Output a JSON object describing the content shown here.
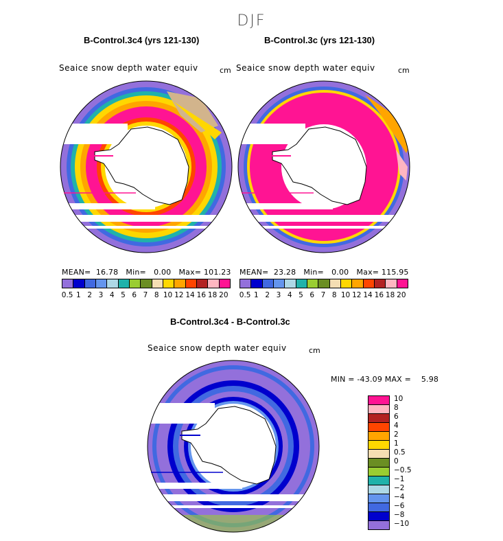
{
  "figure": {
    "season": "DJF"
  },
  "panels": [
    {
      "title": "B-Control.3c4 (yrs 121-130)",
      "variable": "Seaice snow depth water equiv",
      "units": "cm",
      "stats": {
        "mean_label": "MEAN=",
        "mean": "16.78",
        "min_label": "Min=",
        "min": "0.00",
        "max_label": "Max=",
        "max": "101.23"
      }
    },
    {
      "title": "B-Control.3c (yrs 121-130)",
      "variable": "Seaice snow depth water equiv",
      "units": "cm",
      "stats": {
        "mean_label": "MEAN=",
        "mean": "23.28",
        "min_label": "Min=",
        "min": "0.00",
        "max_label": "Max=",
        "max": "115.95"
      }
    },
    {
      "title": "B-Control.3c4 - B-Control.3c",
      "variable": "Seaice snow depth water equiv",
      "units": "cm",
      "stats": {
        "min_label": "MIN =",
        "min": "-43.09",
        "max_label": "MAX =",
        "max": "5.98"
      }
    }
  ],
  "colorbars": {
    "abs": {
      "colors": [
        "#9370DB",
        "#0000CD",
        "#4169E1",
        "#6495ED",
        "#ADD8E6",
        "#20B2AA",
        "#9ACD32",
        "#6B8E23",
        "#F5DEB3",
        "#FFD700",
        "#FFA500",
        "#FF4500",
        "#B22222",
        "#FFB6C1",
        "#FF1493"
      ],
      "labels": [
        "0.5",
        "1",
        "2",
        "3",
        "4",
        "5",
        "6",
        "7",
        "8",
        "10",
        "12",
        "14",
        "16",
        "18",
        "20"
      ]
    },
    "diff": {
      "colors": [
        "#FF1493",
        "#FFB6C1",
        "#B22222",
        "#FF4500",
        "#FFA500",
        "#FFD700",
        "#F5DEB3",
        "#6B8E23",
        "#9ACD32",
        "#20B2AA",
        "#ADD8E6",
        "#6495ED",
        "#4169E1",
        "#0000CD",
        "#9370DB"
      ],
      "labels": [
        "10",
        "8",
        "6",
        "4",
        "2",
        "1",
        "0.5",
        "0",
        "−0.5",
        "−1",
        "−2",
        "−4",
        "−6",
        "−8",
        "−10"
      ]
    }
  },
  "chart_data": [
    {
      "type": "heatmap",
      "title": "B-Control.3c4 (yrs 121-130)",
      "subtitle": "Seaice snow depth water equiv (cm), DJF, south polar stereographic",
      "levels": [
        0.5,
        1,
        2,
        3,
        4,
        5,
        6,
        7,
        8,
        10,
        12,
        14,
        16,
        18,
        20
      ],
      "mean": 16.78,
      "min": 0.0,
      "max": 101.23
    },
    {
      "type": "heatmap",
      "title": "B-Control.3c (yrs 121-130)",
      "subtitle": "Seaice snow depth water equiv (cm), DJF, south polar stereographic",
      "levels": [
        0.5,
        1,
        2,
        3,
        4,
        5,
        6,
        7,
        8,
        10,
        12,
        14,
        16,
        18,
        20
      ],
      "mean": 23.28,
      "min": 0.0,
      "max": 115.95
    },
    {
      "type": "heatmap",
      "title": "B-Control.3c4 - B-Control.3c",
      "subtitle": "Seaice snow depth water equiv difference (cm), DJF",
      "levels": [
        -10,
        -8,
        -6,
        -4,
        -2,
        -1,
        -0.5,
        0,
        0.5,
        1,
        2,
        4,
        6,
        8,
        10
      ],
      "min": -43.09,
      "max": 5.98
    }
  ]
}
